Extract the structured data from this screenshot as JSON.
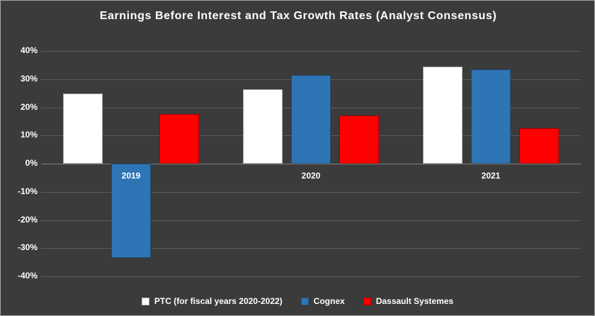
{
  "chart_data": {
    "type": "bar",
    "title": "Earnings Before Interest and Tax Growth Rates (Analyst Consensus)",
    "categories": [
      "2019",
      "2020",
      "2021"
    ],
    "series": [
      {
        "name": "PTC (for fiscal years 2020-2022)",
        "color": "#ffffff",
        "values": [
          25.0,
          26.5,
          34.5
        ]
      },
      {
        "name": "Cognex",
        "color": "#2e75b6",
        "values": [
          -33.5,
          31.5,
          33.5
        ]
      },
      {
        "name": "Dassault Systemes",
        "color": "#fe0000",
        "values": [
          17.5,
          17.0,
          12.5
        ]
      }
    ],
    "ylim": [
      -40,
      40
    ],
    "ytick_step": 10,
    "ytick_labels": [
      "40%",
      "30%",
      "20%",
      "10%",
      "0%",
      "-10%",
      "-20%",
      "-30%",
      "-40%"
    ],
    "grid": true,
    "legend_position": "bottom"
  },
  "colors": {
    "background": "#3b3b3b",
    "gridline": "#5d5d5d",
    "zero_line": "#7d7d7d",
    "text": "#ffffff"
  }
}
